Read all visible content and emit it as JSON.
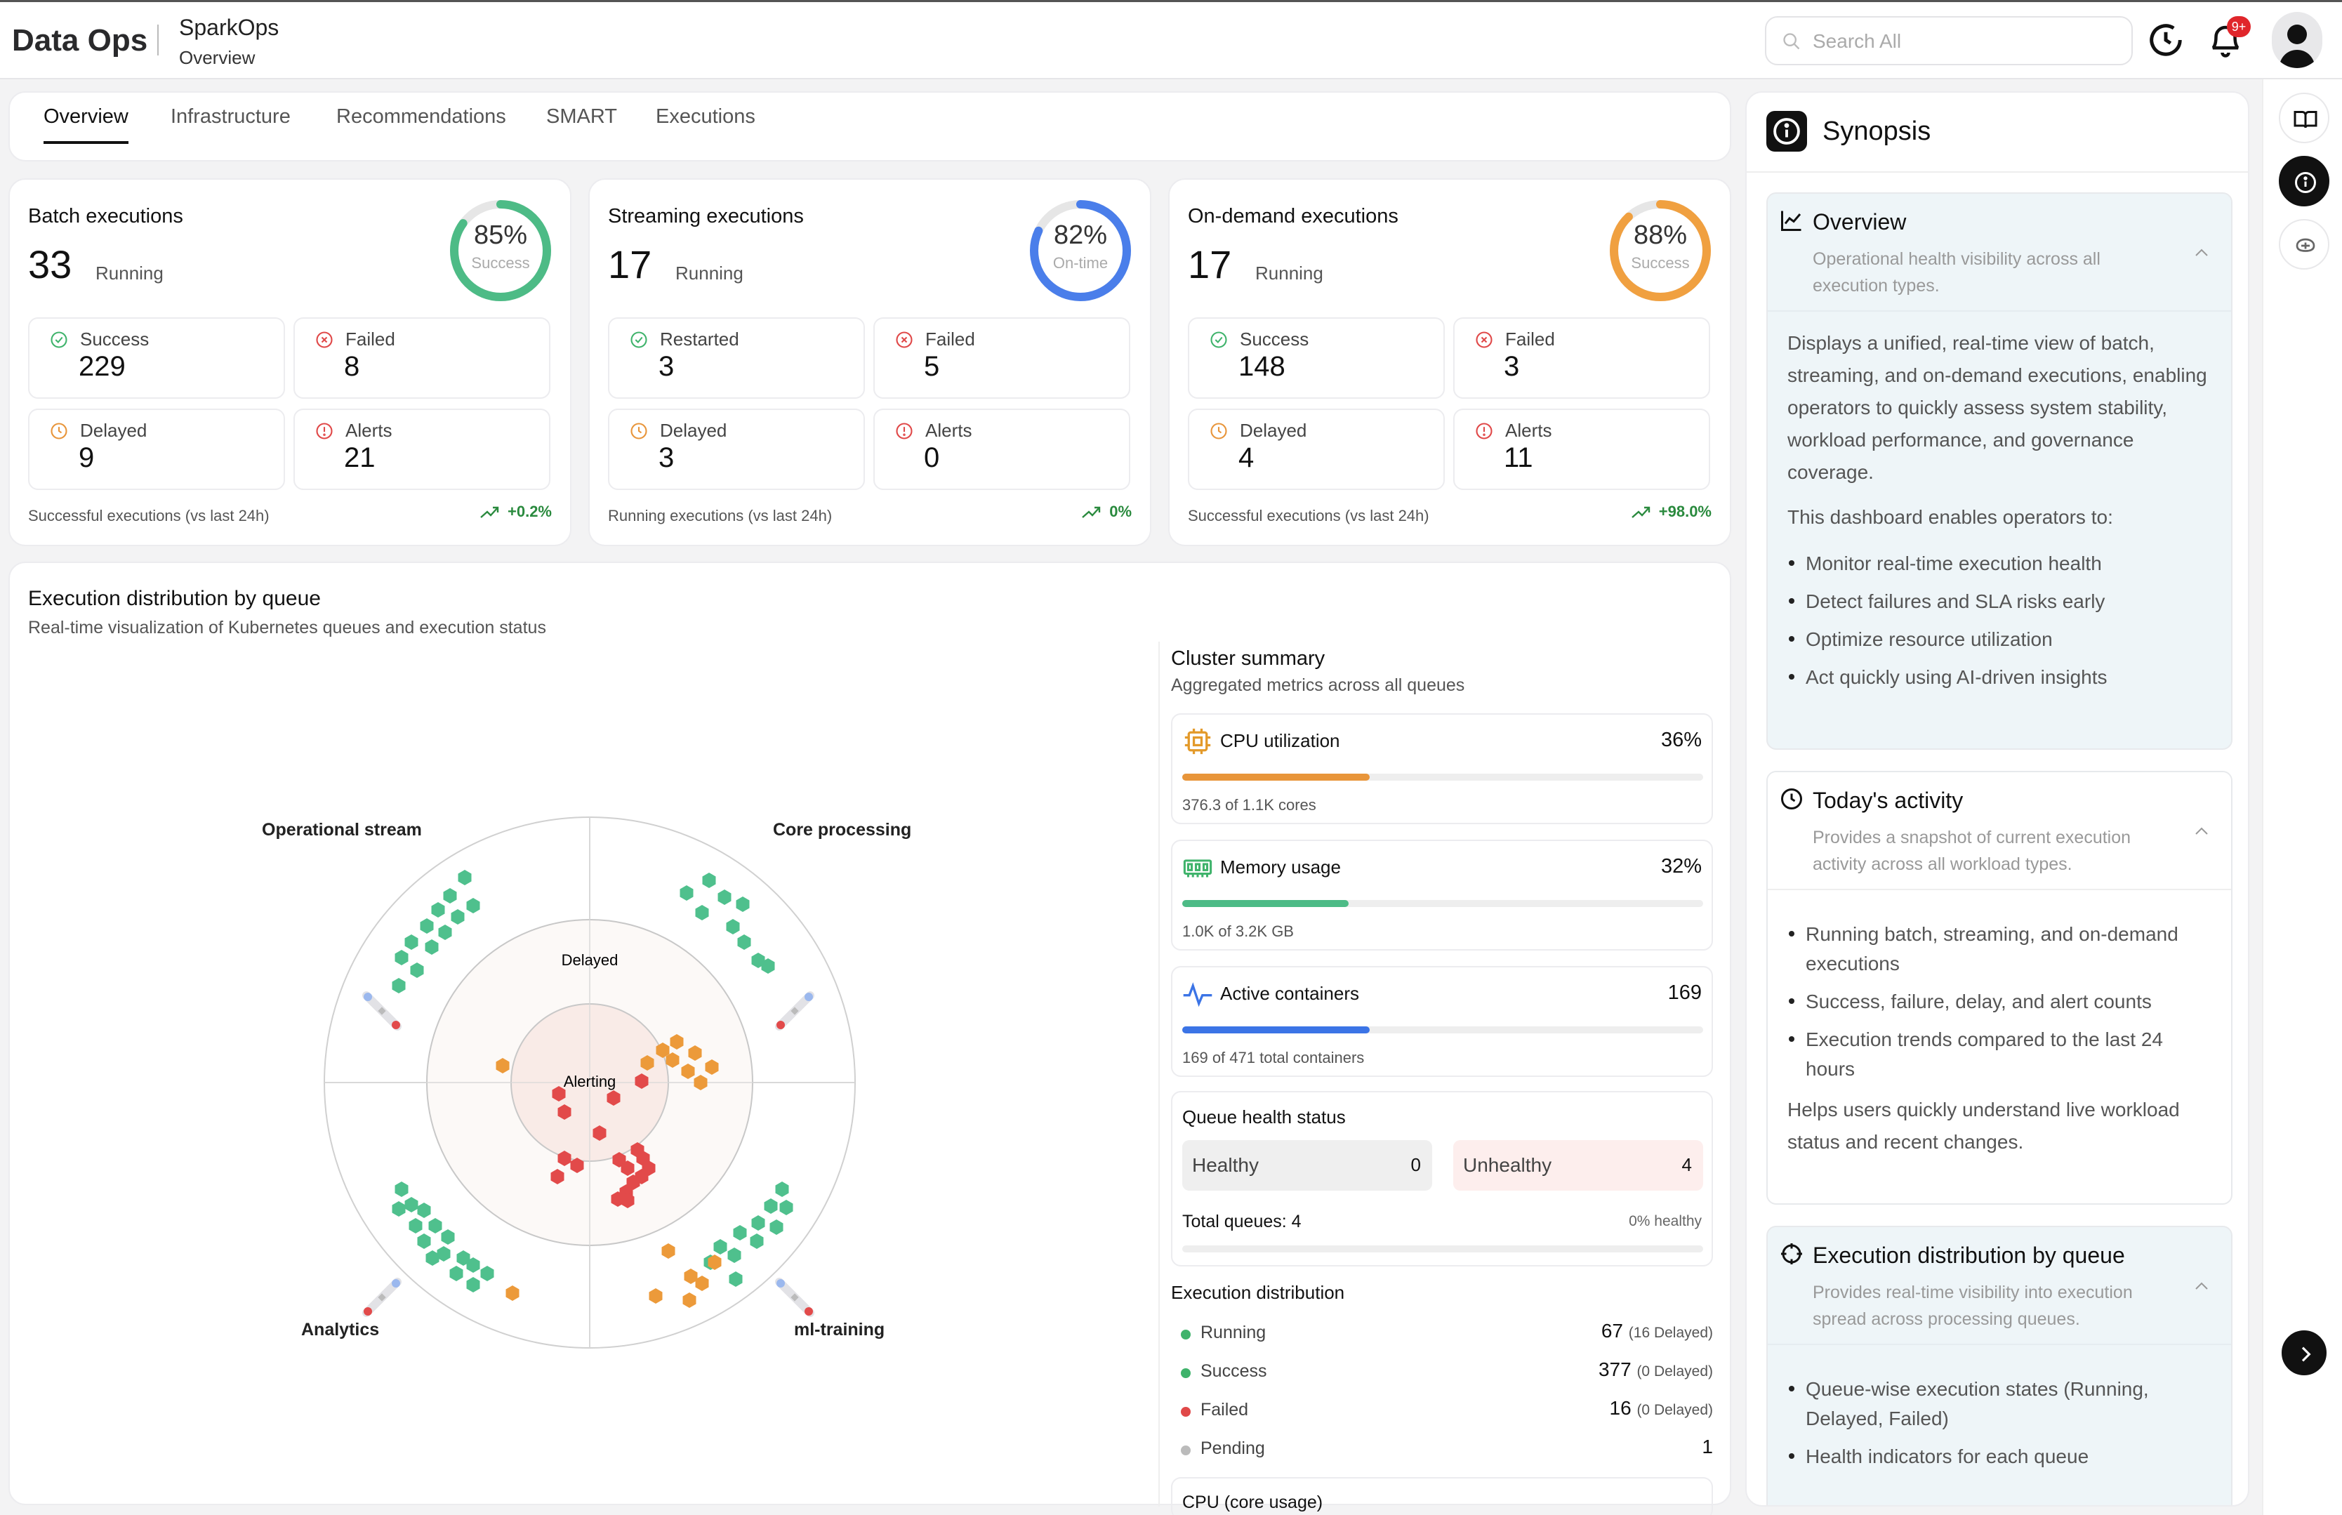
{
  "header": {
    "brand": "Data Ops",
    "app_name": "SparkOps",
    "app_subtitle": "Overview",
    "search_placeholder": "Search All",
    "notification_badge": "9+"
  },
  "tabs": [
    {
      "label": "Overview",
      "active": true
    },
    {
      "label": "Infrastructure"
    },
    {
      "label": "Recommendations"
    },
    {
      "label": "SMART"
    },
    {
      "label": "Executions"
    }
  ],
  "summary_cards": [
    {
      "title": "Batch executions",
      "count": "33",
      "count_label": "Running",
      "ring_pct": "85%",
      "ring_value": 0.85,
      "ring_label": "Success",
      "ring_color": "#4dbb86",
      "tiles": [
        {
          "label": "Success",
          "value": "229",
          "icon": "check-circle-icon"
        },
        {
          "label": "Failed",
          "value": "8",
          "icon": "x-circle-icon"
        },
        {
          "label": "Delayed",
          "value": "9",
          "icon": "clock-icon"
        },
        {
          "label": "Alerts",
          "value": "21",
          "icon": "alert-circle-icon"
        }
      ],
      "footer": "Successful executions (vs last 24h)",
      "trend": "+0.2%"
    },
    {
      "title": "Streaming executions",
      "count": "17",
      "count_label": "Running",
      "ring_pct": "82%",
      "ring_value": 0.82,
      "ring_label": "On-time",
      "ring_color": "#4a7eea",
      "tiles": [
        {
          "label": "Restarted",
          "value": "3",
          "icon": "check-circle-icon"
        },
        {
          "label": "Failed",
          "value": "5",
          "icon": "x-circle-icon"
        },
        {
          "label": "Delayed",
          "value": "3",
          "icon": "clock-icon"
        },
        {
          "label": "Alerts",
          "value": "0",
          "icon": "alert-circle-icon"
        }
      ],
      "footer": "Running executions (vs last 24h)",
      "trend": "0%"
    },
    {
      "title": "On-demand executions",
      "count": "17",
      "count_label": "Running",
      "ring_pct": "88%",
      "ring_value": 0.88,
      "ring_label": "Success",
      "ring_color": "#f0a040",
      "tiles": [
        {
          "label": "Success",
          "value": "148",
          "icon": "check-circle-icon"
        },
        {
          "label": "Failed",
          "value": "3",
          "icon": "x-circle-icon"
        },
        {
          "label": "Delayed",
          "value": "4",
          "icon": "clock-icon"
        },
        {
          "label": "Alerts",
          "value": "11",
          "icon": "alert-circle-icon"
        }
      ],
      "footer": "Successful executions (vs last 24h)",
      "trend": "+98.0%"
    }
  ],
  "distribution": {
    "title": "Execution distribution by queue",
    "subtitle": "Real-time visualization of Kubernetes queues and execution status",
    "queues": [
      "Operational stream",
      "Core processing",
      "Analytics",
      "ml-training"
    ],
    "rings": [
      "Delayed",
      "Alerting"
    ]
  },
  "cluster": {
    "title": "Cluster summary",
    "subtitle": "Aggregated metrics across all queues",
    "metrics": [
      {
        "label": "CPU utilization",
        "value": "36%",
        "fill": 0.36,
        "color": "#e8953a",
        "footer": "376.3 of 1.1K cores",
        "icon": "cpu-icon"
      },
      {
        "label": "Memory usage",
        "value": "32%",
        "fill": 0.32,
        "color": "#4dbb86",
        "footer": "1.0K of 3.2K GB",
        "icon": "memory-icon"
      },
      {
        "label": "Active containers",
        "value": "169",
        "fill": 0.36,
        "color": "#3b74e6",
        "footer": "169 of 471 total containers",
        "icon": "activity-icon"
      }
    ],
    "queue_health": {
      "title": "Queue health status",
      "healthy_label": "Healthy",
      "healthy_value": "0",
      "unhealthy_label": "Unhealthy",
      "unhealthy_value": "4",
      "total": "Total queues: 4",
      "pct_healthy": "0% healthy"
    },
    "exec_dist": {
      "title": "Execution distribution",
      "rows": [
        {
          "label": "Running",
          "value": "67",
          "note": "(16 Delayed)",
          "color": "#3fb36b"
        },
        {
          "label": "Success",
          "value": "377",
          "note": "(0 Delayed)",
          "color": "#3fb36b"
        },
        {
          "label": "Failed",
          "value": "16",
          "note": "(0 Delayed)",
          "color": "#e04848"
        },
        {
          "label": "Pending",
          "value": "1",
          "note": "",
          "color": "#bbbbbb"
        }
      ]
    },
    "cpu_card_title": "CPU (core usage)"
  },
  "synopsis": {
    "title": "Synopsis",
    "sections": [
      {
        "title": "Overview",
        "desc": "Operational health visibility across all execution types.",
        "body_para": "Displays a unified, real-time view of batch, streaming, and on-demand executions, enabling operators to quickly assess system stability, workload performance, and governance coverage.",
        "body_para2": "This dashboard enables operators to:",
        "bullets": [
          "Monitor real-time execution health",
          "Detect failures and SLA risks early",
          "Optimize resource utilization",
          "Act quickly using AI-driven insights"
        ]
      },
      {
        "title": "Today's activity",
        "desc": "Provides a snapshot of current execution activity across all workload types.",
        "bullets": [
          "Running batch, streaming, and on-demand executions",
          "Success, failure, delay, and alert counts",
          "Execution trends compared to the last 24 hours"
        ],
        "footer": "Helps users quickly understand live workload status and recent changes."
      },
      {
        "title": "Execution distribution by queue",
        "desc": "Provides real-time visibility into execution spread across processing queues.",
        "bullets": [
          "Queue-wise execution states (Running, Delayed, Failed)",
          "Health indicators for each queue"
        ]
      }
    ]
  }
}
